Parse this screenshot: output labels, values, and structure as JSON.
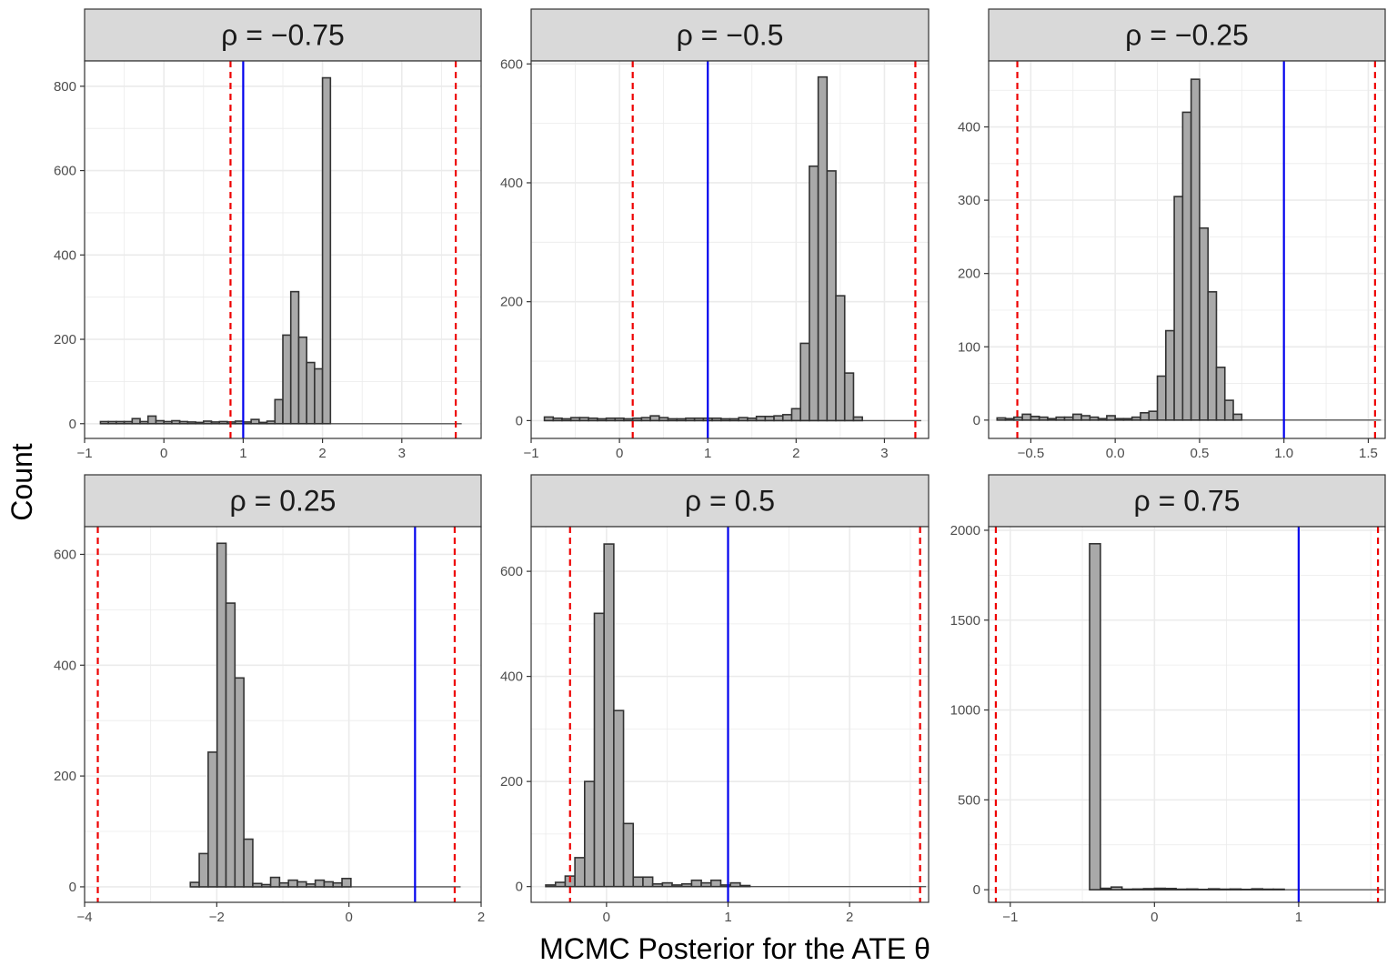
{
  "chart_data": {
    "type": "histogram-facets",
    "xlabel": "MCMC Posterior for the ATE θ",
    "ylabel": "Count",
    "colors": {
      "bar_fill": "#a9a9a9",
      "bar_stroke": "#333333",
      "blue_line": "#0000ee",
      "red_line": "#ee0000",
      "strip_fill": "#d9d9d9",
      "grid": "#ebebeb"
    },
    "panels": [
      {
        "title": "ρ = −0.75",
        "xlim": [
          -1.0,
          4.0
        ],
        "ylim": [
          -35,
          860
        ],
        "xticks": [
          -1,
          0,
          1,
          2,
          3
        ],
        "xtick_labels": [
          "−1",
          "0",
          "1",
          "2",
          "3"
        ],
        "yticks": [
          0,
          200,
          400,
          600,
          800
        ],
        "ytick_labels": [
          "0",
          "200",
          "400",
          "600",
          "800"
        ],
        "blue_line": 1.0,
        "red_lines": [
          0.84,
          3.68
        ],
        "bin_width": 0.1,
        "bins": [
          [
            -0.8,
            5
          ],
          [
            -0.7,
            5
          ],
          [
            -0.6,
            5
          ],
          [
            -0.5,
            5
          ],
          [
            -0.4,
            12
          ],
          [
            -0.3,
            5
          ],
          [
            -0.2,
            18
          ],
          [
            -0.1,
            7
          ],
          [
            0.0,
            5
          ],
          [
            0.1,
            7
          ],
          [
            0.2,
            5
          ],
          [
            0.3,
            4
          ],
          [
            0.4,
            3
          ],
          [
            0.5,
            6
          ],
          [
            0.6,
            4
          ],
          [
            0.7,
            5
          ],
          [
            0.8,
            4
          ],
          [
            0.9,
            6
          ],
          [
            1.0,
            4
          ],
          [
            1.1,
            10
          ],
          [
            1.2,
            3
          ],
          [
            1.3,
            6
          ],
          [
            1.4,
            57
          ],
          [
            1.5,
            210
          ],
          [
            1.6,
            313
          ],
          [
            1.7,
            205
          ],
          [
            1.8,
            145
          ],
          [
            1.9,
            130
          ],
          [
            2.0,
            820
          ]
        ]
      },
      {
        "title": "ρ = −0.5",
        "xlim": [
          -1.0,
          3.5
        ],
        "ylim": [
          -30,
          605
        ],
        "xticks": [
          -1,
          0,
          1,
          2,
          3
        ],
        "xtick_labels": [
          "−1",
          "0",
          "1",
          "2",
          "3"
        ],
        "yticks": [
          0,
          200,
          400,
          600
        ],
        "ytick_labels": [
          "0",
          "200",
          "400",
          "600"
        ],
        "blue_line": 1.0,
        "red_lines": [
          0.15,
          3.35
        ],
        "bin_width": 0.1,
        "bins": [
          [
            -0.85,
            6
          ],
          [
            -0.75,
            4
          ],
          [
            -0.65,
            3
          ],
          [
            -0.55,
            5
          ],
          [
            -0.45,
            5
          ],
          [
            -0.35,
            4
          ],
          [
            -0.25,
            3
          ],
          [
            -0.15,
            4
          ],
          [
            -0.05,
            4
          ],
          [
            0.05,
            3
          ],
          [
            0.15,
            4
          ],
          [
            0.25,
            5
          ],
          [
            0.35,
            8
          ],
          [
            0.45,
            5
          ],
          [
            0.55,
            3
          ],
          [
            0.65,
            3
          ],
          [
            0.75,
            4
          ],
          [
            0.85,
            4
          ],
          [
            0.95,
            4
          ],
          [
            1.05,
            4
          ],
          [
            1.15,
            3
          ],
          [
            1.25,
            3
          ],
          [
            1.35,
            5
          ],
          [
            1.45,
            4
          ],
          [
            1.55,
            7
          ],
          [
            1.65,
            7
          ],
          [
            1.75,
            8
          ],
          [
            1.85,
            10
          ],
          [
            1.95,
            20
          ],
          [
            2.05,
            130
          ],
          [
            2.15,
            428
          ],
          [
            2.25,
            578
          ],
          [
            2.35,
            420
          ],
          [
            2.45,
            210
          ],
          [
            2.55,
            80
          ],
          [
            2.65,
            6
          ]
        ]
      },
      {
        "title": "ρ = −0.25",
        "xlim": [
          -0.75,
          1.6
        ],
        "ylim": [
          -25,
          490
        ],
        "xticks": [
          -0.5,
          0.0,
          0.5,
          1.0,
          1.5
        ],
        "xtick_labels": [
          "−0.5",
          "0.0",
          "0.5",
          "1.0",
          "1.5"
        ],
        "yticks": [
          0,
          100,
          200,
          300,
          400
        ],
        "ytick_labels": [
          "0",
          "100",
          "200",
          "300",
          "400"
        ],
        "blue_line": 1.0,
        "red_lines": [
          -0.58,
          1.54
        ],
        "bin_width": 0.05,
        "bins": [
          [
            -0.7,
            3
          ],
          [
            -0.65,
            2
          ],
          [
            -0.6,
            4
          ],
          [
            -0.55,
            8
          ],
          [
            -0.5,
            5
          ],
          [
            -0.45,
            4
          ],
          [
            -0.4,
            2
          ],
          [
            -0.35,
            4
          ],
          [
            -0.3,
            4
          ],
          [
            -0.25,
            8
          ],
          [
            -0.2,
            6
          ],
          [
            -0.15,
            4
          ],
          [
            -0.1,
            2
          ],
          [
            -0.05,
            6
          ],
          [
            0.0,
            2
          ],
          [
            0.05,
            2
          ],
          [
            0.1,
            4
          ],
          [
            0.15,
            10
          ],
          [
            0.2,
            12
          ],
          [
            0.25,
            60
          ],
          [
            0.3,
            122
          ],
          [
            0.35,
            305
          ],
          [
            0.4,
            420
          ],
          [
            0.45,
            465
          ],
          [
            0.5,
            262
          ],
          [
            0.55,
            175
          ],
          [
            0.6,
            72
          ],
          [
            0.65,
            27
          ],
          [
            0.7,
            8
          ]
        ]
      },
      {
        "title": "ρ = 0.25",
        "xlim": [
          -4.0,
          2.0
        ],
        "ylim": [
          -28,
          650
        ],
        "xticks": [
          -4,
          -2,
          0,
          2
        ],
        "xtick_labels": [
          "−4",
          "−2",
          "0",
          "2"
        ],
        "yticks": [
          0,
          200,
          400,
          600
        ],
        "ytick_labels": [
          "0",
          "200",
          "400",
          "600"
        ],
        "blue_line": 1.0,
        "red_lines": [
          -3.8,
          1.6
        ],
        "bin_width": 0.135,
        "bins": [
          [
            -2.4,
            8
          ],
          [
            -2.265,
            60
          ],
          [
            -2.13,
            243
          ],
          [
            -1.995,
            620
          ],
          [
            -1.86,
            512
          ],
          [
            -1.725,
            377
          ],
          [
            -1.59,
            86
          ],
          [
            -1.455,
            6
          ],
          [
            -1.32,
            4
          ],
          [
            -1.185,
            17
          ],
          [
            -1.05,
            7
          ],
          [
            -0.915,
            12
          ],
          [
            -0.78,
            9
          ],
          [
            -0.645,
            5
          ],
          [
            -0.51,
            12
          ],
          [
            -0.375,
            9
          ],
          [
            -0.24,
            7
          ],
          [
            -0.105,
            15
          ]
        ]
      },
      {
        "title": "ρ = 0.5",
        "xlim": [
          -0.62,
          2.65
        ],
        "ylim": [
          -30,
          685
        ],
        "xticks": [
          0,
          1,
          2
        ],
        "xtick_labels": [
          "0",
          "1",
          "2"
        ],
        "yticks": [
          0,
          200,
          400,
          600
        ],
        "ytick_labels": [
          "0",
          "200",
          "400",
          "600"
        ],
        "blue_line": 1.0,
        "red_lines": [
          -0.3,
          2.58
        ],
        "bin_width": 0.08,
        "bins": [
          [
            -0.5,
            3
          ],
          [
            -0.42,
            8
          ],
          [
            -0.34,
            20
          ],
          [
            -0.26,
            55
          ],
          [
            -0.18,
            200
          ],
          [
            -0.1,
            520
          ],
          [
            -0.02,
            652
          ],
          [
            0.06,
            335
          ],
          [
            0.14,
            120
          ],
          [
            0.22,
            18
          ],
          [
            0.3,
            18
          ],
          [
            0.38,
            5
          ],
          [
            0.46,
            7
          ],
          [
            0.54,
            3
          ],
          [
            0.62,
            5
          ],
          [
            0.7,
            12
          ],
          [
            0.78,
            7
          ],
          [
            0.86,
            12
          ],
          [
            0.94,
            3
          ],
          [
            1.02,
            7
          ],
          [
            1.1,
            2
          ]
        ]
      },
      {
        "title": "ρ = 0.75",
        "xlim": [
          -1.15,
          1.6
        ],
        "ylim": [
          -70,
          2020
        ],
        "xticks": [
          -1,
          0,
          1
        ],
        "xtick_labels": [
          "−1",
          "0",
          "1"
        ],
        "yticks": [
          0,
          500,
          1000,
          1500,
          2000
        ],
        "ytick_labels": [
          "0",
          "500",
          "1000",
          "1500",
          "2000"
        ],
        "blue_line": 1.0,
        "red_lines": [
          -1.1,
          1.55
        ],
        "bin_width": 0.075,
        "bins": [
          [
            -0.45,
            1925
          ],
          [
            -0.375,
            8
          ],
          [
            -0.3,
            15
          ],
          [
            -0.225,
            3
          ],
          [
            -0.15,
            4
          ],
          [
            -0.075,
            6
          ],
          [
            0.0,
            8
          ],
          [
            0.075,
            7
          ],
          [
            0.15,
            3
          ],
          [
            0.225,
            4
          ],
          [
            0.3,
            2
          ],
          [
            0.375,
            5
          ],
          [
            0.45,
            3
          ],
          [
            0.525,
            4
          ],
          [
            0.6,
            2
          ],
          [
            0.675,
            5
          ],
          [
            0.75,
            3
          ],
          [
            0.825,
            3
          ]
        ]
      }
    ]
  }
}
